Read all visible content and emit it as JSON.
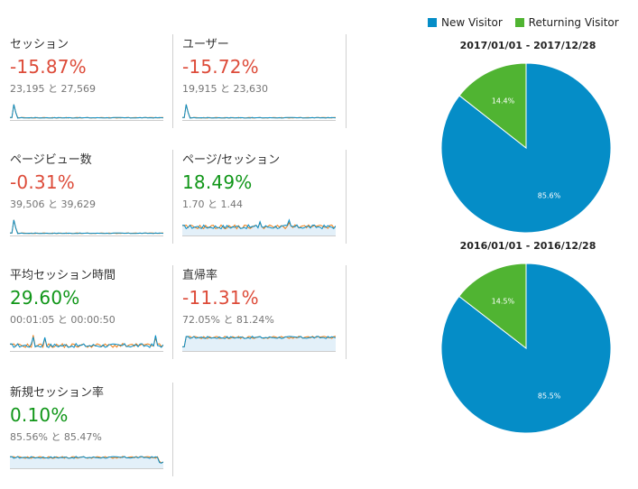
{
  "colors": {
    "new": "#058dc7",
    "returning": "#50b432",
    "negative": "#dd4b39",
    "positive": "#109618",
    "line_current": "#058dc7",
    "line_previous": "#ed7e17"
  },
  "metrics": [
    {
      "name": "セッション",
      "change": "-15.87%",
      "compare": "23,195 と 27,569",
      "sign": "neg",
      "spark": "spike"
    },
    {
      "name": "ユーザー",
      "change": "-15.72%",
      "compare": "19,915 と 23,630",
      "sign": "neg",
      "spark": "spike"
    },
    {
      "name": "ページビュー数",
      "change": "-0.31%",
      "compare": "39,506 と 39,629",
      "sign": "neg",
      "spark": "spike"
    },
    {
      "name": "ページ/セッション",
      "change": "18.49%",
      "compare": "1.70 と 1.44",
      "sign": "pos",
      "spark": "noisy"
    },
    {
      "name": "平均セッション時間",
      "change": "29.60%",
      "compare": "00:01:05 と 00:00:50",
      "sign": "pos",
      "spark": "noisy2"
    },
    {
      "name": "直帰率",
      "change": "-11.31%",
      "compare": "72.05% と 81.24%",
      "sign": "neg",
      "spark": "dip"
    },
    {
      "name": "新規セッション率",
      "change": "0.10%",
      "compare": "85.56% と 85.47%",
      "sign": "pos",
      "spark": "flat"
    }
  ],
  "chart_data": [
    {
      "type": "pie",
      "title": "2017/01/01 - 2017/12/28",
      "categories": [
        "New Visitor",
        "Returning Visitor"
      ],
      "values": [
        85.6,
        14.4
      ],
      "labels": [
        "85.6%",
        "14.4%"
      ]
    },
    {
      "type": "pie",
      "title": "2016/01/01 - 2016/12/28",
      "categories": [
        "New Visitor",
        "Returning Visitor"
      ],
      "values": [
        85.5,
        14.5
      ],
      "labels": [
        "85.5%",
        "14.5%"
      ]
    }
  ],
  "legend": {
    "new": "New Visitor",
    "returning": "Returning Visitor"
  }
}
